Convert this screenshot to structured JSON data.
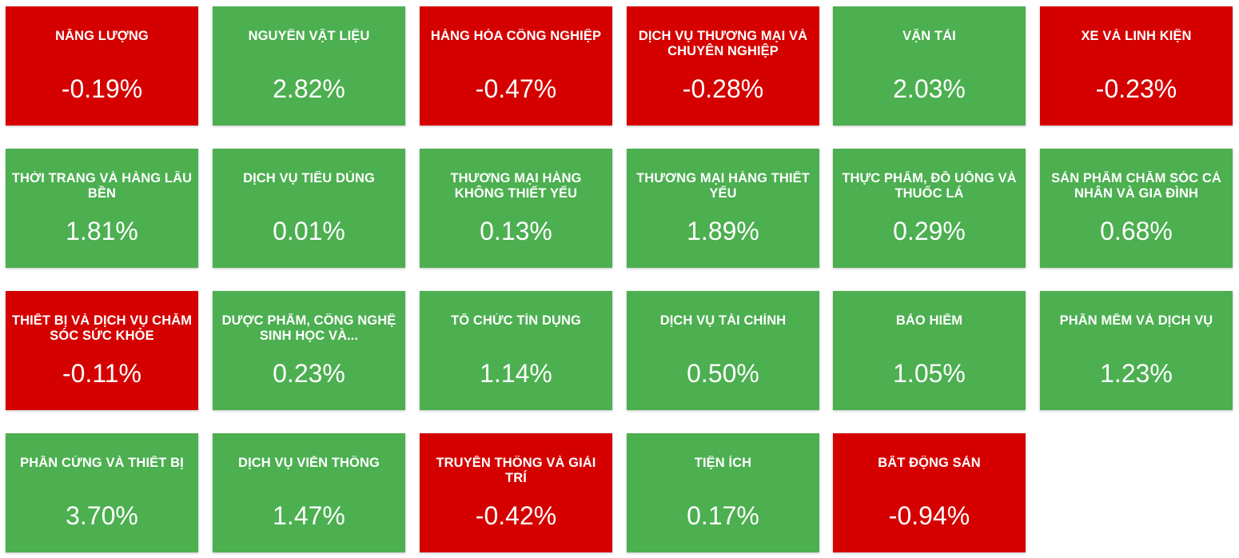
{
  "colors": {
    "positive": "#4caf50",
    "negative": "#d50000",
    "text": "#ffffff"
  },
  "sectors": [
    {
      "name": "NĂNG LƯỢNG",
      "value": "-0.19%"
    },
    {
      "name": "NGUYÊN VẬT LIỆU",
      "value": "2.82%"
    },
    {
      "name": "HÀNG HÓA CÔNG NGHIỆP",
      "value": "-0.47%"
    },
    {
      "name": "DỊCH VỤ THƯƠNG MẠI VÀ CHUYÊN NGHIỆP",
      "value": "-0.28%"
    },
    {
      "name": "VẬN TẢI",
      "value": "2.03%"
    },
    {
      "name": "XE VÀ LINH KIỆN",
      "value": "-0.23%"
    },
    {
      "name": "THỜI TRANG VÀ HÀNG LÂU BỀN",
      "value": "1.81%"
    },
    {
      "name": "DỊCH VỤ TIÊU DÙNG",
      "value": "0.01%"
    },
    {
      "name": "THƯƠNG MẠI HÀNG KHÔNG THIẾT YẾU",
      "value": "0.13%"
    },
    {
      "name": "THƯƠNG MẠI HÀNG THIẾT YẾU",
      "value": "1.89%"
    },
    {
      "name": "THỰC PHẨM, ĐỒ UỐNG VÀ THUỐC LÁ",
      "value": "0.29%"
    },
    {
      "name": "SẢN PHẨM CHĂM SÓC CÁ NHÂN VÀ GIA ĐÌNH",
      "value": "0.68%"
    },
    {
      "name": "THIẾT BỊ VÀ DỊCH VỤ CHĂM SÓC SỨC KHỎE",
      "value": "-0.11%"
    },
    {
      "name": "DƯỢC PHẨM, CÔNG NGHỆ SINH HỌC VÀ...",
      "value": "0.23%"
    },
    {
      "name": "TỔ CHỨC TÍN DỤNG",
      "value": "1.14%"
    },
    {
      "name": "DỊCH VỤ TÀI CHÍNH",
      "value": "0.50%"
    },
    {
      "name": "BẢO HIỂM",
      "value": "1.05%"
    },
    {
      "name": "PHẦN MỀM VÀ DỊCH VỤ",
      "value": "1.23%"
    },
    {
      "name": "PHẦN CỨNG VÀ THIẾT BỊ",
      "value": "3.70%"
    },
    {
      "name": "DỊCH VỤ VIỄN THÔNG",
      "value": "1.47%"
    },
    {
      "name": "TRUYỀN THÔNG VÀ GIẢI TRÍ",
      "value": "-0.42%"
    },
    {
      "name": "TIỆN ÍCH",
      "value": "0.17%"
    },
    {
      "name": "BẤT ĐỘNG SẢN",
      "value": "-0.94%"
    }
  ]
}
